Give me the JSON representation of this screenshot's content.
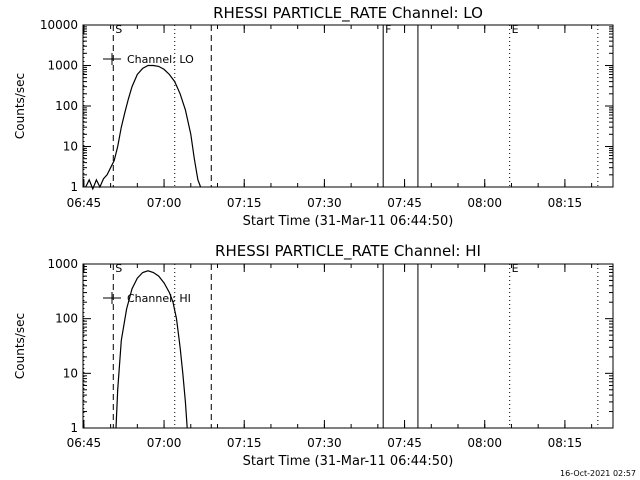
{
  "chart_data": [
    {
      "type": "line",
      "title": "RHESSI PARTICLE_RATE Channel: LO",
      "xlabel": "Start Time (31-Mar-11 06:44:50)",
      "ylabel": "Counts/sec",
      "yscale": "log",
      "xlim": [
        "06:44:50",
        "08:24:00"
      ],
      "ylim": [
        1,
        10000
      ],
      "x_ticks": [
        "06:45",
        "07:00",
        "07:15",
        "07:30",
        "07:45",
        "08:00",
        "08:15"
      ],
      "y_ticks": [
        "1",
        "10",
        "100",
        "1000",
        "10000"
      ],
      "legend": {
        "label": "Channel: LO",
        "placement": "top-left"
      },
      "grid": false,
      "series": [
        {
          "name": "Channel: LO",
          "x": [
            "06:45:20",
            "06:46:00",
            "06:46:40",
            "06:47:20",
            "06:48:00",
            "06:48:40",
            "06:49:20",
            "06:50:00",
            "06:50:40",
            "06:51:20",
            "06:52:00",
            "06:52:40",
            "06:53:20",
            "06:54:00",
            "06:55:00",
            "06:56:00",
            "06:57:00",
            "06:58:00",
            "06:59:00",
            "07:00:00",
            "07:01:00",
            "07:02:00",
            "07:03:00",
            "07:04:00",
            "07:05:00",
            "07:05:40",
            "07:06:20",
            "07:06:50"
          ],
          "y": [
            1.0,
            1.5,
            0.9,
            1.5,
            1.0,
            1.6,
            2.0,
            3.0,
            4.5,
            10,
            30,
            70,
            150,
            300,
            600,
            850,
            1000,
            1000,
            950,
            800,
            600,
            400,
            200,
            80,
            20,
            5,
            1.5,
            1.0
          ]
        }
      ],
      "markers": [
        {
          "label": "",
          "x": "06:45:00",
          "style": "dotted"
        },
        {
          "label": "S",
          "x": "06:50:30",
          "style": "dashed"
        },
        {
          "label": "",
          "x": "07:02:00",
          "style": "dotted"
        },
        {
          "label": "",
          "x": "07:08:50",
          "style": "dashed"
        },
        {
          "label": "F",
          "x": "07:41:00",
          "style": "solid"
        },
        {
          "label": "",
          "x": "07:47:30",
          "style": "solid"
        },
        {
          "label": "E",
          "x": "08:04:40",
          "style": "dotted"
        },
        {
          "label": "",
          "x": "08:21:10",
          "style": "dotted"
        }
      ]
    },
    {
      "type": "line",
      "title": "RHESSI PARTICLE_RATE Channel: HI",
      "xlabel": "Start Time (31-Mar-11 06:44:50)",
      "ylabel": "Counts/sec",
      "yscale": "log",
      "xlim": [
        "06:44:50",
        "08:24:00"
      ],
      "ylim": [
        1,
        1000
      ],
      "x_ticks": [
        "06:45",
        "07:00",
        "07:15",
        "07:30",
        "07:45",
        "08:00",
        "08:15"
      ],
      "y_ticks": [
        "1",
        "10",
        "100",
        "1000"
      ],
      "legend": {
        "label": "Channel: HI",
        "placement": "top-left"
      },
      "grid": false,
      "series": [
        {
          "name": "Channel: HI",
          "x": [
            "06:51:00",
            "06:51:20",
            "06:52:00",
            "06:53:00",
            "06:54:00",
            "06:55:00",
            "06:56:00",
            "06:57:00",
            "06:58:00",
            "06:59:00",
            "07:00:00",
            "07:01:00",
            "07:01:40",
            "07:02:20",
            "07:03:00",
            "07:03:30",
            "07:04:00",
            "07:04:20"
          ],
          "y": [
            1.0,
            5,
            40,
            150,
            350,
            550,
            700,
            750,
            700,
            600,
            450,
            300,
            200,
            100,
            30,
            10,
            3,
            1.0
          ]
        }
      ],
      "markers": [
        {
          "label": "",
          "x": "06:45:00",
          "style": "dotted"
        },
        {
          "label": "S",
          "x": "06:50:30",
          "style": "dashed"
        },
        {
          "label": "",
          "x": "07:02:00",
          "style": "dotted"
        },
        {
          "label": "",
          "x": "07:08:50",
          "style": "dashed"
        },
        {
          "label": "",
          "x": "07:41:00",
          "style": "solid"
        },
        {
          "label": "",
          "x": "07:47:30",
          "style": "solid"
        },
        {
          "label": "E",
          "x": "08:04:40",
          "style": "dotted"
        },
        {
          "label": "",
          "x": "08:21:10",
          "style": "dotted"
        }
      ]
    }
  ],
  "footer": "16-Oct-2021 02:57"
}
